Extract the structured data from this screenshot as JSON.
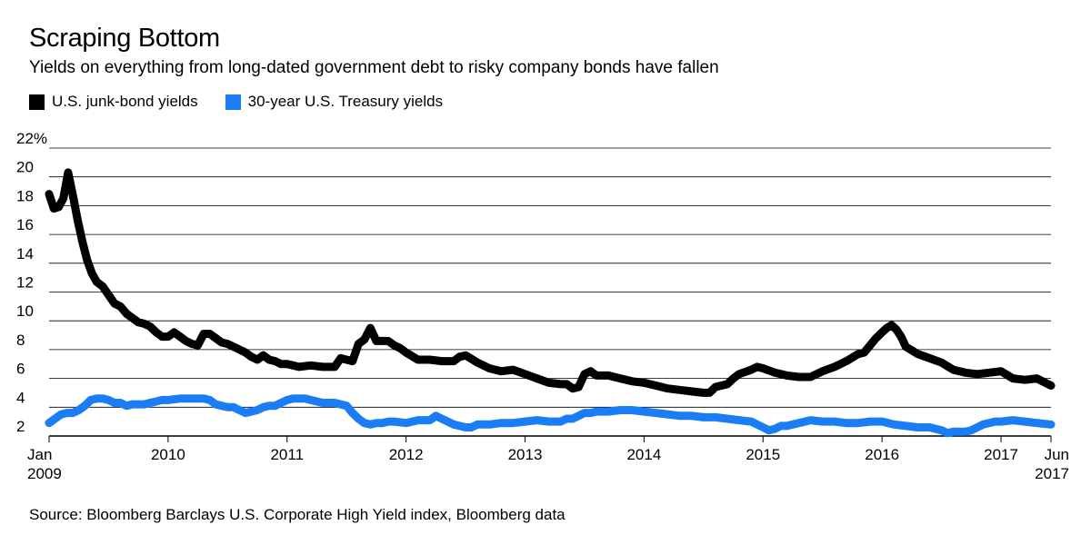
{
  "header": {
    "title": "Scraping Bottom",
    "subtitle": "Yields on everything from long-dated government debt to risky company bonds have fallen"
  },
  "source": "Source: Bloomberg Barclays U.S. Corporate High Yield index, Bloomberg data",
  "colors": {
    "junk": "#000000",
    "treasury": "#1a7df5",
    "grid": "#000000"
  },
  "chart_data": {
    "type": "line",
    "title": "Scraping Bottom",
    "xlabel": "",
    "ylabel": "",
    "ylim": [
      2,
      22
    ],
    "xlim": [
      2009.0,
      2017.42
    ],
    "y_ticks": [
      2,
      4,
      6,
      8,
      10,
      12,
      14,
      16,
      18,
      20,
      22
    ],
    "y_tick_labels": [
      "2",
      "4",
      "6",
      "8",
      "10",
      "12",
      "14",
      "16",
      "18",
      "20",
      "22%"
    ],
    "x_ticks": [
      {
        "value": 2009.0,
        "label": "Jan",
        "sublabel": "2009"
      },
      {
        "value": 2010.0,
        "label": "2010",
        "sublabel": ""
      },
      {
        "value": 2011.0,
        "label": "2011",
        "sublabel": ""
      },
      {
        "value": 2012.0,
        "label": "2012",
        "sublabel": ""
      },
      {
        "value": 2013.0,
        "label": "2013",
        "sublabel": ""
      },
      {
        "value": 2014.0,
        "label": "2014",
        "sublabel": ""
      },
      {
        "value": 2015.0,
        "label": "2015",
        "sublabel": ""
      },
      {
        "value": 2016.0,
        "label": "2016",
        "sublabel": ""
      },
      {
        "value": 2017.0,
        "label": "2017",
        "sublabel": ""
      },
      {
        "value": 2017.42,
        "label": "Jun",
        "sublabel": "2017"
      }
    ],
    "series": [
      {
        "name": "U.S. junk-bond yields",
        "color": "#000000",
        "x": [
          2009.0,
          2009.04,
          2009.08,
          2009.12,
          2009.16,
          2009.2,
          2009.24,
          2009.28,
          2009.32,
          2009.36,
          2009.4,
          2009.45,
          2009.5,
          2009.55,
          2009.6,
          2009.65,
          2009.7,
          2009.75,
          2009.8,
          2009.85,
          2009.9,
          2009.95,
          2010.0,
          2010.05,
          2010.1,
          2010.15,
          2010.2,
          2010.25,
          2010.3,
          2010.35,
          2010.4,
          2010.45,
          2010.5,
          2010.55,
          2010.6,
          2010.65,
          2010.7,
          2010.75,
          2010.8,
          2010.85,
          2010.9,
          2010.95,
          2011.0,
          2011.1,
          2011.2,
          2011.3,
          2011.4,
          2011.45,
          2011.5,
          2011.55,
          2011.6,
          2011.65,
          2011.7,
          2011.75,
          2011.8,
          2011.85,
          2011.9,
          2011.95,
          2012.0,
          2012.1,
          2012.2,
          2012.3,
          2012.4,
          2012.45,
          2012.5,
          2012.6,
          2012.7,
          2012.8,
          2012.9,
          2013.0,
          2013.1,
          2013.2,
          2013.3,
          2013.35,
          2013.4,
          2013.45,
          2013.5,
          2013.55,
          2013.6,
          2013.7,
          2013.8,
          2013.9,
          2014.0,
          2014.1,
          2014.2,
          2014.3,
          2014.4,
          2014.5,
          2014.55,
          2014.6,
          2014.7,
          2014.75,
          2014.8,
          2014.9,
          2014.95,
          2015.0,
          2015.1,
          2015.2,
          2015.3,
          2015.4,
          2015.5,
          2015.6,
          2015.7,
          2015.8,
          2015.85,
          2015.9,
          2015.95,
          2016.0,
          2016.04,
          2016.08,
          2016.12,
          2016.16,
          2016.2,
          2016.3,
          2016.4,
          2016.5,
          2016.6,
          2016.7,
          2016.8,
          2016.9,
          2017.0,
          2017.1,
          2017.2,
          2017.3,
          2017.42
        ],
        "y": [
          18.8,
          17.8,
          17.9,
          18.5,
          20.3,
          18.7,
          17.0,
          15.5,
          14.2,
          13.3,
          12.7,
          12.4,
          11.8,
          11.2,
          11.0,
          10.5,
          10.2,
          9.9,
          9.8,
          9.6,
          9.2,
          8.9,
          8.9,
          9.2,
          8.9,
          8.6,
          8.4,
          8.3,
          9.1,
          9.1,
          8.8,
          8.5,
          8.4,
          8.2,
          8.0,
          7.8,
          7.5,
          7.3,
          7.6,
          7.3,
          7.2,
          7.0,
          7.0,
          6.8,
          6.9,
          6.8,
          6.8,
          7.4,
          7.3,
          7.2,
          8.4,
          8.7,
          9.5,
          8.6,
          8.6,
          8.6,
          8.3,
          8.1,
          7.8,
          7.3,
          7.3,
          7.2,
          7.2,
          7.5,
          7.6,
          7.1,
          6.7,
          6.5,
          6.6,
          6.3,
          6.0,
          5.7,
          5.6,
          5.6,
          5.3,
          5.4,
          6.3,
          6.5,
          6.2,
          6.2,
          6.0,
          5.8,
          5.7,
          5.5,
          5.3,
          5.2,
          5.1,
          5.0,
          5.0,
          5.4,
          5.6,
          6.0,
          6.3,
          6.6,
          6.8,
          6.7,
          6.4,
          6.2,
          6.1,
          6.1,
          6.5,
          6.8,
          7.2,
          7.7,
          7.8,
          8.3,
          8.8,
          9.2,
          9.5,
          9.7,
          9.4,
          8.9,
          8.2,
          7.7,
          7.4,
          7.1,
          6.6,
          6.4,
          6.3,
          6.4,
          6.5,
          6.0,
          5.9,
          6.0,
          5.5
        ]
      },
      {
        "name": "30-year U.S. Treasury yields",
        "color": "#1a7df5",
        "x": [
          2009.0,
          2009.05,
          2009.1,
          2009.15,
          2009.2,
          2009.25,
          2009.3,
          2009.35,
          2009.4,
          2009.45,
          2009.5,
          2009.55,
          2009.6,
          2009.65,
          2009.7,
          2009.75,
          2009.8,
          2009.85,
          2009.9,
          2009.95,
          2010.0,
          2010.1,
          2010.2,
          2010.3,
          2010.35,
          2010.4,
          2010.45,
          2010.5,
          2010.55,
          2010.6,
          2010.65,
          2010.7,
          2010.75,
          2010.8,
          2010.85,
          2010.9,
          2010.95,
          2011.0,
          2011.05,
          2011.1,
          2011.15,
          2011.2,
          2011.3,
          2011.4,
          2011.45,
          2011.5,
          2011.55,
          2011.6,
          2011.65,
          2011.7,
          2011.75,
          2011.8,
          2011.85,
          2011.9,
          2012.0,
          2012.1,
          2012.2,
          2012.25,
          2012.3,
          2012.35,
          2012.4,
          2012.45,
          2012.5,
          2012.55,
          2012.6,
          2012.7,
          2012.8,
          2012.9,
          2013.0,
          2013.1,
          2013.2,
          2013.3,
          2013.35,
          2013.4,
          2013.45,
          2013.5,
          2013.55,
          2013.6,
          2013.7,
          2013.8,
          2013.9,
          2014.0,
          2014.1,
          2014.2,
          2014.3,
          2014.4,
          2014.5,
          2014.6,
          2014.7,
          2014.8,
          2014.9,
          2015.0,
          2015.05,
          2015.1,
          2015.15,
          2015.2,
          2015.3,
          2015.4,
          2015.5,
          2015.6,
          2015.7,
          2015.8,
          2015.9,
          2016.0,
          2016.1,
          2016.2,
          2016.3,
          2016.4,
          2016.5,
          2016.55,
          2016.6,
          2016.65,
          2016.7,
          2016.75,
          2016.8,
          2016.85,
          2016.9,
          2016.95,
          2017.0,
          2017.1,
          2017.2,
          2017.3,
          2017.42
        ],
        "y": [
          2.9,
          3.2,
          3.5,
          3.6,
          3.6,
          3.8,
          4.1,
          4.5,
          4.6,
          4.6,
          4.5,
          4.3,
          4.3,
          4.1,
          4.2,
          4.2,
          4.2,
          4.3,
          4.4,
          4.5,
          4.5,
          4.6,
          4.6,
          4.6,
          4.5,
          4.2,
          4.1,
          4.0,
          4.0,
          3.8,
          3.6,
          3.7,
          3.8,
          4.0,
          4.1,
          4.1,
          4.3,
          4.5,
          4.6,
          4.6,
          4.6,
          4.5,
          4.3,
          4.3,
          4.2,
          4.1,
          3.6,
          3.2,
          2.9,
          2.8,
          2.9,
          2.9,
          3.0,
          3.0,
          2.9,
          3.1,
          3.1,
          3.4,
          3.2,
          3.0,
          2.8,
          2.7,
          2.6,
          2.6,
          2.8,
          2.8,
          2.9,
          2.9,
          3.0,
          3.1,
          3.0,
          3.0,
          3.2,
          3.2,
          3.4,
          3.6,
          3.6,
          3.7,
          3.7,
          3.8,
          3.8,
          3.7,
          3.6,
          3.5,
          3.4,
          3.4,
          3.3,
          3.3,
          3.2,
          3.1,
          3.0,
          2.6,
          2.4,
          2.5,
          2.7,
          2.7,
          2.9,
          3.1,
          3.0,
          3.0,
          2.9,
          2.9,
          3.0,
          3.0,
          2.8,
          2.7,
          2.6,
          2.6,
          2.4,
          2.2,
          2.3,
          2.3,
          2.3,
          2.4,
          2.6,
          2.8,
          2.9,
          3.0,
          3.0,
          3.1,
          3.0,
          2.9,
          2.8
        ]
      }
    ],
    "legend": [
      {
        "label": "U.S. junk-bond yields",
        "color": "#000000"
      },
      {
        "label": "30-year U.S. Treasury yields",
        "color": "#1a7df5"
      }
    ],
    "legend_position": "top-left",
    "grid": true
  }
}
